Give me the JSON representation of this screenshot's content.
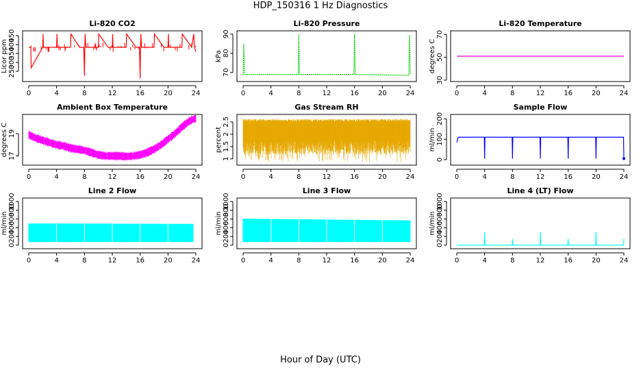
{
  "figure": {
    "title": "HDP_150316  1 Hz Diagnostics",
    "xlabel": "Hour of Day (UTC)"
  },
  "chart_data": [
    {
      "type": "line",
      "title": "Li-820 CO2",
      "ylabel": "Licor ppm",
      "color": "#ff0000",
      "xlim": [
        0,
        24
      ],
      "ylim": [
        200,
        470
      ],
      "xticks": [
        0,
        4,
        8,
        12,
        16,
        20,
        24
      ],
      "yticks": [
        250,
        300,
        350,
        400,
        450
      ],
      "series": [
        {
          "x": [
            0,
            0.3,
            0.35,
            2.0,
            2.05,
            2.1,
            3.4,
            4.0,
            4.05,
            4.1,
            6.0,
            6.05,
            7.3,
            7.9,
            8.0,
            8.05,
            8.1,
            8.2,
            10.0,
            10.05,
            11.4,
            12.0,
            12.05,
            12.1,
            14.0,
            14.05,
            15.4,
            15.9,
            16.0,
            16.05,
            16.1,
            16.2,
            18.0,
            18.05,
            19.4,
            20.0,
            20.05,
            20.1,
            22.0,
            22.05,
            23.4,
            23.7,
            23.8,
            24.0
          ],
          "y": [
            385,
            385,
            270,
            385,
            460,
            385,
            385,
            385,
            460,
            385,
            385,
            460,
            385,
            385,
            225,
            385,
            460,
            385,
            385,
            460,
            385,
            385,
            460,
            385,
            385,
            460,
            385,
            385,
            210,
            385,
            460,
            385,
            385,
            460,
            385,
            385,
            460,
            385,
            385,
            460,
            385,
            460,
            385,
            360
          ]
        }
      ]
    },
    {
      "type": "line",
      "title": "Li-820 Pressure",
      "ylabel": "kPa",
      "color": "#00cc00",
      "xlim": [
        0,
        24
      ],
      "ylim": [
        66,
        91
      ],
      "xticks": [
        0,
        4,
        8,
        12,
        16,
        20,
        24
      ],
      "yticks": [
        70,
        80,
        90
      ],
      "series": [
        {
          "x": [
            0,
            0.1,
            0.2,
            0.3,
            0.6,
            7.9,
            8.0,
            8.1,
            15.9,
            16.0,
            16.1,
            23.8,
            23.9,
            24.0
          ],
          "y": [
            68.5,
            85,
            69.5,
            69,
            69,
            69,
            90,
            69,
            69,
            90,
            69,
            68.5,
            89.5,
            69
          ]
        }
      ]
    },
    {
      "type": "line",
      "title": "Li-820 Temperature",
      "ylabel": "degrees C",
      "color": "#dd00dd",
      "xlim": [
        0,
        24
      ],
      "ylim": [
        30,
        72
      ],
      "xticks": [
        0,
        4,
        8,
        12,
        16,
        20,
        24
      ],
      "yticks": [
        30,
        50,
        70
      ],
      "series": [
        {
          "x": [
            0,
            24
          ],
          "y": [
            51,
            51
          ]
        }
      ]
    },
    {
      "type": "line",
      "title": "Ambient Box Temperature",
      "ylabel": "degrees C",
      "color": "#ff00ff",
      "xlim": [
        0,
        24
      ],
      "ylim": [
        16.3,
        20.6
      ],
      "xticks": [
        0,
        4,
        8,
        12,
        16,
        20,
        24
      ],
      "yticks": [
        17,
        19
      ],
      "series": [
        {
          "x": [
            0,
            1,
            2,
            3,
            4,
            5,
            6,
            7,
            8,
            9,
            10,
            11,
            12,
            13,
            14,
            15,
            16,
            17,
            18,
            19,
            20,
            21,
            22,
            23,
            24
          ],
          "y": [
            18.9,
            18.6,
            18.4,
            18.2,
            18.0,
            17.9,
            17.7,
            17.6,
            17.5,
            17.3,
            17.1,
            17.0,
            17.0,
            17.0,
            16.95,
            17.0,
            17.1,
            17.3,
            17.6,
            18.0,
            18.5,
            19.0,
            19.6,
            20.1,
            20.4
          ]
        }
      ]
    },
    {
      "type": "line",
      "title": "Gas Stream RH",
      "ylabel": "percent",
      "color": "#e6a800",
      "xlim": [
        0,
        24
      ],
      "ylim": [
        0.8,
        2.75
      ],
      "xticks": [
        0,
        4,
        8,
        12,
        16,
        20,
        24
      ],
      "yticks": [
        1.0,
        1.5,
        2.0,
        2.5
      ],
      "series": [
        {
          "name": "upper",
          "x": [
            0,
            24
          ],
          "y": [
            2.55,
            2.55
          ]
        },
        {
          "name": "lower",
          "x": [
            0,
            24
          ],
          "y": [
            0.95,
            0.95
          ]
        }
      ]
    },
    {
      "type": "line",
      "title": "Sample Flow",
      "ylabel": "ml/min",
      "color": "#0000ff",
      "xlim": [
        0,
        24
      ],
      "ylim": [
        -20,
        215
      ],
      "xticks": [
        0,
        4,
        8,
        12,
        16,
        20,
        24
      ],
      "yticks": [
        0,
        100,
        200
      ],
      "series": [
        {
          "x": [
            0,
            0.2,
            3.95,
            4.0,
            4.05,
            7.95,
            8.0,
            8.05,
            11.95,
            12.0,
            12.05,
            15.95,
            16.0,
            16.05,
            19.95,
            20.0,
            20.05,
            23.95,
            24.0
          ],
          "y": [
            85,
            110,
            110,
            5,
            110,
            110,
            5,
            110,
            110,
            5,
            110,
            110,
            5,
            110,
            110,
            5,
            110,
            110,
            5
          ]
        }
      ]
    },
    {
      "type": "area",
      "title": "Line 2 Flow",
      "ylabel": "ml/min",
      "color": "#00ffff",
      "xlim": [
        0,
        24
      ],
      "ylim": [
        -50,
        1050
      ],
      "xticks": [
        0,
        4,
        8,
        12,
        16,
        20,
        24
      ],
      "yticks": [
        0,
        200,
        400,
        600,
        800,
        1000
      ],
      "series": [
        {
          "name": "upper",
          "x": [
            0,
            23.6
          ],
          "y": [
            490,
            480
          ]
        },
        {
          "name": "lower",
          "x": [
            0,
            23.6
          ],
          "y": [
            80,
            80
          ]
        }
      ]
    },
    {
      "type": "area",
      "title": "Line 3 Flow",
      "ylabel": "ml/min",
      "color": "#00ffff",
      "xlim": [
        0,
        24
      ],
      "ylim": [
        -50,
        1050
      ],
      "xticks": [
        0,
        4,
        8,
        12,
        16,
        20,
        24
      ],
      "yticks": [
        0,
        200,
        400,
        600,
        800,
        1000
      ],
      "series": [
        {
          "name": "upper",
          "x": [
            0,
            24
          ],
          "y": [
            600,
            560
          ]
        },
        {
          "name": "lower",
          "x": [
            0,
            24
          ],
          "y": [
            80,
            80
          ]
        }
      ]
    },
    {
      "type": "line",
      "title": "Line 4 (LT) Flow",
      "ylabel": "ml/min",
      "color": "#00ffff",
      "xlim": [
        0,
        24
      ],
      "ylim": [
        -50,
        1050
      ],
      "xticks": [
        0,
        4,
        8,
        12,
        16,
        20,
        24
      ],
      "yticks": [
        0,
        200,
        400,
        600,
        800,
        1000
      ],
      "series": [
        {
          "x": [
            0,
            3.95,
            4.0,
            4.05,
            7.95,
            8.0,
            8.05,
            11.95,
            12.0,
            12.05,
            15.95,
            16.0,
            16.05,
            19.95,
            20.0,
            20.05,
            23.95,
            24.0
          ],
          "y": [
            0,
            0,
            300,
            0,
            0,
            140,
            0,
            0,
            300,
            0,
            0,
            140,
            0,
            0,
            300,
            0,
            0,
            140
          ]
        }
      ]
    }
  ]
}
